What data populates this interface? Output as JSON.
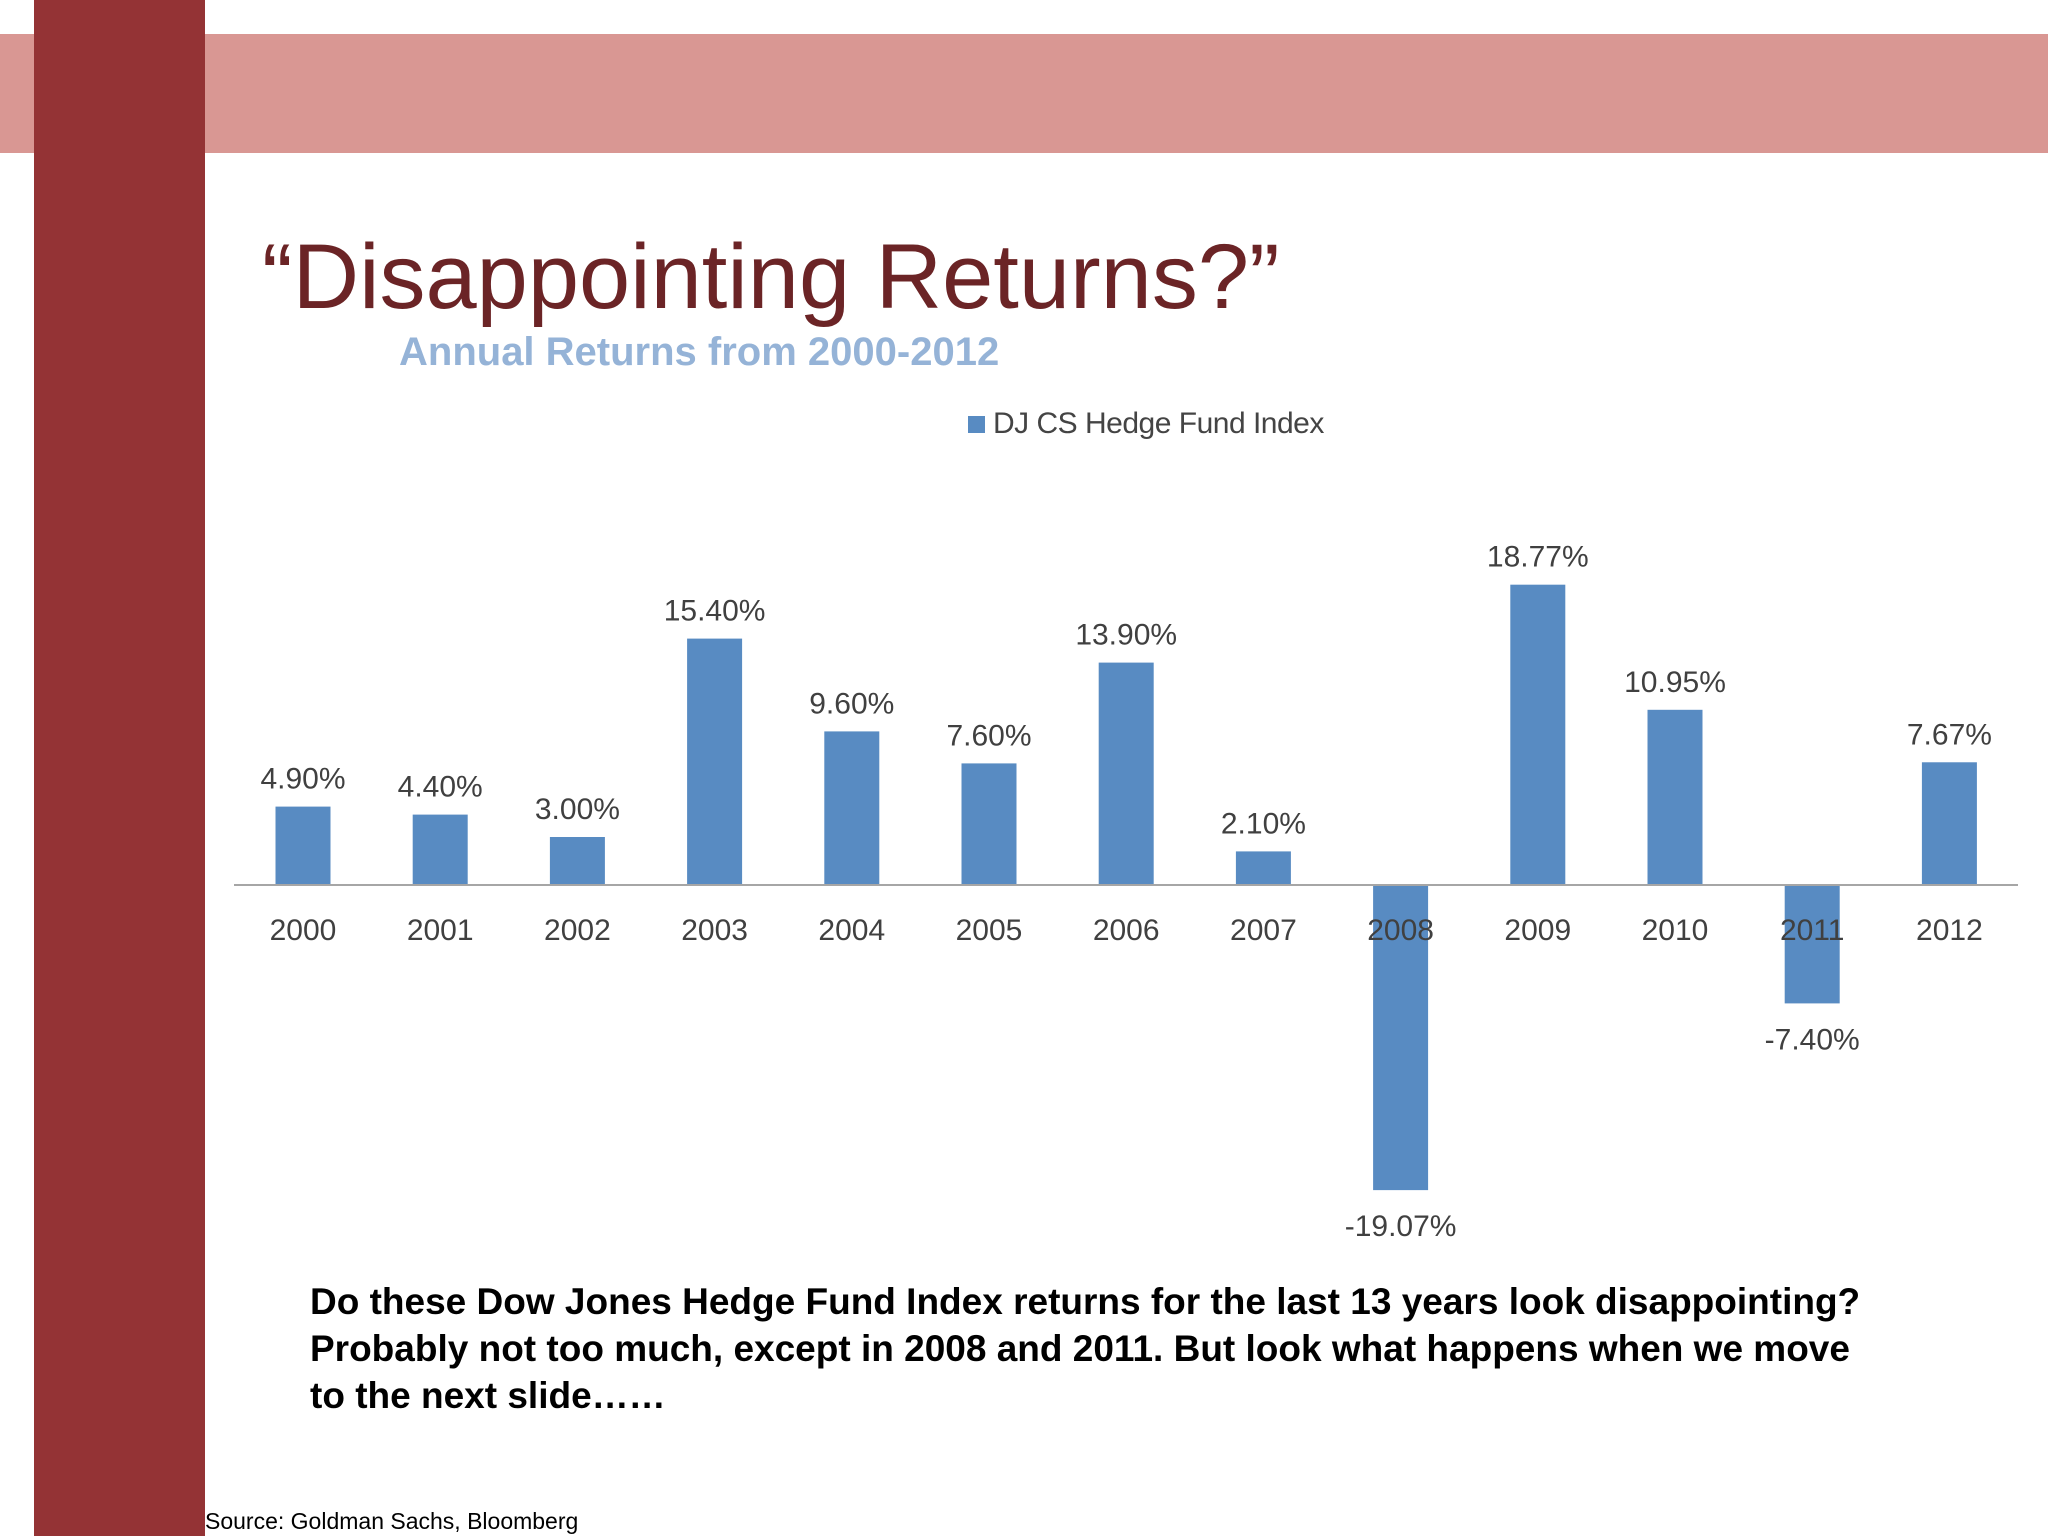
{
  "slide": {
    "title": "“Disappointing Returns?”",
    "caption": "Do these Dow Jones Hedge Fund Index returns for the last 13 years look disappointing? Probably not too much, except in 2008 and 2011. But look what happens when we move to the next slide……",
    "source": "Source: Goldman Sachs, Bloomberg"
  },
  "colors": {
    "top_band": "#d99793",
    "side_bar": "#943335",
    "title": "#6b2426",
    "chart_title": "#95b3d7",
    "bar": "#588bc2",
    "axis": "#a6a6a6",
    "label": "#404040"
  },
  "chart_data": {
    "type": "bar",
    "title": "Annual Returns from 2000-2012",
    "legend_position": "top",
    "grid": false,
    "categories": [
      "2000",
      "2001",
      "2002",
      "2003",
      "2004",
      "2005",
      "2006",
      "2007",
      "2008",
      "2009",
      "2010",
      "2011",
      "2012"
    ],
    "series": [
      {
        "name": "DJ CS Hedge Fund Index",
        "values": [
          4.9,
          4.4,
          3.0,
          15.4,
          9.6,
          7.6,
          13.9,
          2.1,
          -19.07,
          18.77,
          10.95,
          -7.4,
          7.67
        ],
        "labels": [
          "4.90%",
          "4.40%",
          "3.00%",
          "15.40%",
          "9.60%",
          "7.60%",
          "13.90%",
          "2.10%",
          "-19.07%",
          "18.77%",
          "10.95%",
          "-7.40%",
          "7.67%"
        ]
      }
    ],
    "ylim": [
      -25,
      25
    ]
  }
}
